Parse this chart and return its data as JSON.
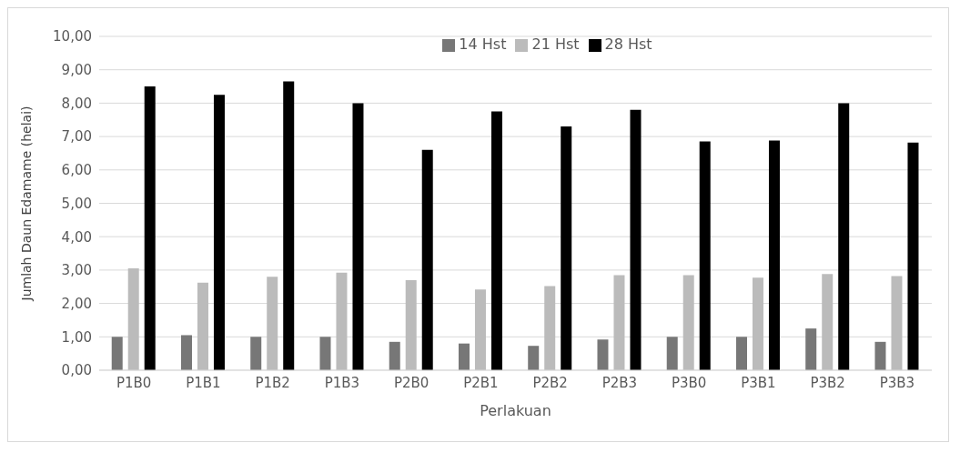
{
  "chart_data": {
    "type": "bar",
    "xlabel": "Perlakuan",
    "ylabel": "Jumlah Daun Edamame (helai)",
    "categories": [
      "P1B0",
      "P1B1",
      "P1B2",
      "P1B3",
      "P2B0",
      "P2B1",
      "P2B2",
      "P2B3",
      "P3B0",
      "P3B1",
      "P3B2",
      "P3B3"
    ],
    "series": [
      {
        "name": "14 Hst",
        "color": "#777777",
        "values": [
          1.0,
          1.05,
          1.0,
          1.0,
          0.85,
          0.8,
          0.73,
          0.92,
          1.0,
          1.0,
          1.25,
          0.85
        ]
      },
      {
        "name": "21 Hst",
        "color": "#bbbbbb",
        "values": [
          3.05,
          2.62,
          2.8,
          2.92,
          2.7,
          2.42,
          2.52,
          2.85,
          2.85,
          2.77,
          2.88,
          2.82
        ]
      },
      {
        "name": "28 Hst",
        "color": "#000000",
        "values": [
          8.5,
          8.25,
          8.65,
          8.0,
          6.6,
          7.75,
          7.3,
          7.8,
          6.85,
          6.88,
          8.0,
          6.82
        ]
      }
    ],
    "ylim": [
      0,
      10
    ],
    "yticks": [
      {
        "value": 0,
        "label": "0,00"
      },
      {
        "value": 1,
        "label": "1,00"
      },
      {
        "value": 2,
        "label": "2,00"
      },
      {
        "value": 3,
        "label": "3,00"
      },
      {
        "value": 4,
        "label": "4,00"
      },
      {
        "value": 5,
        "label": "5,00"
      },
      {
        "value": 6,
        "label": "6,00"
      },
      {
        "value": 7,
        "label": "7,00"
      },
      {
        "value": 8,
        "label": "8,00"
      },
      {
        "value": 9,
        "label": "9,00"
      },
      {
        "value": 10,
        "label": "10,00"
      }
    ],
    "grid": "y",
    "legend": "top"
  }
}
